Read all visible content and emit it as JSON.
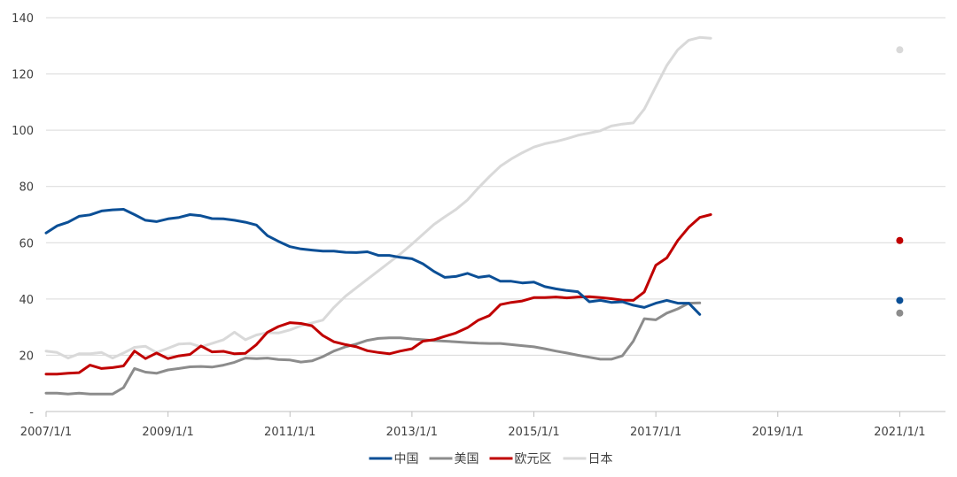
{
  "chart_data": {
    "type": "line",
    "title": "",
    "xlabel": "",
    "ylabel": "",
    "x_ticks": [
      {
        "label": "2007/1/1",
        "x": 2007.0
      },
      {
        "label": "2009/1/1",
        "x": 2009.0
      },
      {
        "label": "2011/1/1",
        "x": 2011.0
      },
      {
        "label": "2013/1/1",
        "x": 2013.0
      },
      {
        "label": "2015/1/1",
        "x": 2015.0
      },
      {
        "label": "2017/1/1",
        "x": 2017.0
      },
      {
        "label": "2019/1/1",
        "x": 2019.0
      },
      {
        "label": "2021/1/1",
        "x": 2021.0
      }
    ],
    "y_ticks": [
      {
        "label": "-",
        "value": 0
      },
      {
        "label": "20",
        "value": 20
      },
      {
        "label": "40",
        "value": 40
      },
      {
        "label": "60",
        "value": 60
      },
      {
        "label": "80",
        "value": 80
      },
      {
        "label": "100",
        "value": 100
      },
      {
        "label": "120",
        "value": 120
      },
      {
        "label": "140",
        "value": 140
      }
    ],
    "xlim": [
      2007.0,
      2021.75
    ],
    "ylim": [
      0,
      140
    ],
    "grid": true,
    "legend": "bottom",
    "series": [
      {
        "name": "中国",
        "color": "#0b4f96",
        "marker": {
          "x": 2021.0,
          "y": 39.5
        },
        "points": [
          [
            2007.0,
            63.5
          ],
          [
            2007.18,
            66.0
          ],
          [
            2007.36,
            67.3
          ],
          [
            2007.54,
            69.4
          ],
          [
            2007.72,
            69.9
          ],
          [
            2007.91,
            71.3
          ],
          [
            2008.09,
            71.7
          ],
          [
            2008.27,
            71.9
          ],
          [
            2008.45,
            70.0
          ],
          [
            2008.63,
            68.0
          ],
          [
            2008.81,
            67.5
          ],
          [
            2009.0,
            68.5
          ],
          [
            2009.18,
            69.0
          ],
          [
            2009.36,
            70.0
          ],
          [
            2009.54,
            69.6
          ],
          [
            2009.72,
            68.6
          ],
          [
            2009.91,
            68.5
          ],
          [
            2010.09,
            68.0
          ],
          [
            2010.27,
            67.3
          ],
          [
            2010.45,
            66.3
          ],
          [
            2010.63,
            62.5
          ],
          [
            2010.81,
            60.5
          ],
          [
            2011.0,
            58.6
          ],
          [
            2011.18,
            57.8
          ],
          [
            2011.36,
            57.4
          ],
          [
            2011.54,
            57.0
          ],
          [
            2011.72,
            57.0
          ],
          [
            2011.91,
            56.6
          ],
          [
            2012.09,
            56.5
          ],
          [
            2012.27,
            56.8
          ],
          [
            2012.45,
            55.5
          ],
          [
            2012.63,
            55.5
          ],
          [
            2012.81,
            54.8
          ],
          [
            2013.0,
            54.3
          ],
          [
            2013.18,
            52.5
          ],
          [
            2013.36,
            49.8
          ],
          [
            2013.54,
            47.7
          ],
          [
            2013.72,
            48.0
          ],
          [
            2013.91,
            49.1
          ],
          [
            2014.09,
            47.7
          ],
          [
            2014.27,
            48.2
          ],
          [
            2014.45,
            46.3
          ],
          [
            2014.63,
            46.3
          ],
          [
            2014.81,
            45.7
          ],
          [
            2015.0,
            46.0
          ],
          [
            2015.18,
            44.4
          ],
          [
            2015.36,
            43.6
          ],
          [
            2015.54,
            43.0
          ],
          [
            2015.72,
            42.6
          ],
          [
            2015.91,
            39.0
          ],
          [
            2016.09,
            39.5
          ],
          [
            2016.27,
            38.8
          ],
          [
            2016.45,
            39.0
          ],
          [
            2016.63,
            37.8
          ],
          [
            2016.81,
            37.0
          ],
          [
            2017.0,
            38.5
          ],
          [
            2017.18,
            39.5
          ],
          [
            2017.36,
            38.5
          ],
          [
            2017.54,
            38.5
          ],
          [
            2017.72,
            34.5
          ]
        ]
      },
      {
        "name": "美国",
        "color": "#8c8c8c",
        "marker": {
          "x": 2021.0,
          "y": 35.0
        },
        "points": [
          [
            2007.0,
            6.5
          ],
          [
            2007.18,
            6.5
          ],
          [
            2007.36,
            6.2
          ],
          [
            2007.54,
            6.5
          ],
          [
            2007.72,
            6.2
          ],
          [
            2007.91,
            6.2
          ],
          [
            2008.09,
            6.2
          ],
          [
            2008.27,
            8.5
          ],
          [
            2008.45,
            15.3
          ],
          [
            2008.63,
            14.0
          ],
          [
            2008.81,
            13.6
          ],
          [
            2009.0,
            14.8
          ],
          [
            2009.18,
            15.3
          ],
          [
            2009.36,
            15.9
          ],
          [
            2009.54,
            16.0
          ],
          [
            2009.72,
            15.8
          ],
          [
            2009.91,
            16.5
          ],
          [
            2010.09,
            17.5
          ],
          [
            2010.27,
            19.0
          ],
          [
            2010.45,
            18.8
          ],
          [
            2010.63,
            19.0
          ],
          [
            2010.81,
            18.5
          ],
          [
            2011.0,
            18.3
          ],
          [
            2011.18,
            17.6
          ],
          [
            2011.36,
            18.0
          ],
          [
            2011.54,
            19.5
          ],
          [
            2011.72,
            21.5
          ],
          [
            2011.91,
            23.0
          ],
          [
            2012.09,
            24.0
          ],
          [
            2012.27,
            25.3
          ],
          [
            2012.45,
            26.0
          ],
          [
            2012.63,
            26.2
          ],
          [
            2012.81,
            26.2
          ],
          [
            2013.0,
            25.8
          ],
          [
            2013.18,
            25.5
          ],
          [
            2013.36,
            25.2
          ],
          [
            2013.54,
            25.0
          ],
          [
            2013.72,
            24.8
          ],
          [
            2013.91,
            24.5
          ],
          [
            2014.09,
            24.3
          ],
          [
            2014.27,
            24.2
          ],
          [
            2014.45,
            24.2
          ],
          [
            2014.63,
            23.8
          ],
          [
            2014.81,
            23.4
          ],
          [
            2015.0,
            23.0
          ],
          [
            2015.18,
            22.3
          ],
          [
            2015.36,
            21.5
          ],
          [
            2015.54,
            20.8
          ],
          [
            2015.72,
            20.0
          ],
          [
            2015.91,
            19.3
          ],
          [
            2016.09,
            18.6
          ],
          [
            2016.27,
            18.6
          ],
          [
            2016.45,
            19.8
          ],
          [
            2016.63,
            25.0
          ],
          [
            2016.81,
            33.0
          ],
          [
            2017.0,
            32.6
          ],
          [
            2017.18,
            35.0
          ],
          [
            2017.36,
            36.5
          ],
          [
            2017.54,
            38.5
          ],
          [
            2017.72,
            38.6
          ]
        ]
      },
      {
        "name": "欧元区",
        "color": "#c00000",
        "marker": {
          "x": 2021.0,
          "y": 60.8
        },
        "points": [
          [
            2007.0,
            13.3
          ],
          [
            2007.18,
            13.3
          ],
          [
            2007.36,
            13.6
          ],
          [
            2007.54,
            13.8
          ],
          [
            2007.72,
            16.5
          ],
          [
            2007.91,
            15.3
          ],
          [
            2008.09,
            15.6
          ],
          [
            2008.27,
            16.2
          ],
          [
            2008.45,
            21.5
          ],
          [
            2008.63,
            18.8
          ],
          [
            2008.81,
            20.8
          ],
          [
            2009.0,
            18.8
          ],
          [
            2009.18,
            19.8
          ],
          [
            2009.36,
            20.3
          ],
          [
            2009.54,
            23.3
          ],
          [
            2009.72,
            21.2
          ],
          [
            2009.91,
            21.4
          ],
          [
            2010.09,
            20.5
          ],
          [
            2010.27,
            20.7
          ],
          [
            2010.45,
            23.8
          ],
          [
            2010.63,
            28.2
          ],
          [
            2010.81,
            30.2
          ],
          [
            2011.0,
            31.6
          ],
          [
            2011.18,
            31.3
          ],
          [
            2011.36,
            30.5
          ],
          [
            2011.54,
            27.0
          ],
          [
            2011.72,
            24.8
          ],
          [
            2011.91,
            23.8
          ],
          [
            2012.09,
            23.0
          ],
          [
            2012.27,
            21.6
          ],
          [
            2012.45,
            21.0
          ],
          [
            2012.63,
            20.5
          ],
          [
            2012.81,
            21.5
          ],
          [
            2013.0,
            22.3
          ],
          [
            2013.18,
            25.0
          ],
          [
            2013.36,
            25.5
          ],
          [
            2013.54,
            26.7
          ],
          [
            2013.72,
            27.9
          ],
          [
            2013.91,
            29.8
          ],
          [
            2014.09,
            32.5
          ],
          [
            2014.27,
            34.1
          ],
          [
            2014.45,
            38.0
          ],
          [
            2014.63,
            38.8
          ],
          [
            2014.81,
            39.3
          ],
          [
            2015.0,
            40.5
          ],
          [
            2015.18,
            40.5
          ],
          [
            2015.36,
            40.7
          ],
          [
            2015.54,
            40.4
          ],
          [
            2015.72,
            40.7
          ],
          [
            2015.91,
            40.8
          ],
          [
            2016.09,
            40.5
          ],
          [
            2016.27,
            40.1
          ],
          [
            2016.45,
            39.6
          ],
          [
            2016.63,
            39.5
          ],
          [
            2016.81,
            42.5
          ],
          [
            2017.0,
            52.0
          ],
          [
            2017.18,
            54.6
          ],
          [
            2017.36,
            60.8
          ],
          [
            2017.54,
            65.5
          ],
          [
            2017.72,
            69.0
          ],
          [
            2017.9,
            70.0
          ]
        ]
      },
      {
        "name": "日本",
        "color": "#d9d9d9",
        "marker": {
          "x": 2021.0,
          "y": 128.6
        },
        "points": [
          [
            2007.0,
            21.5
          ],
          [
            2007.18,
            21.0
          ],
          [
            2007.36,
            19.0
          ],
          [
            2007.54,
            20.5
          ],
          [
            2007.72,
            20.5
          ],
          [
            2007.91,
            21.0
          ],
          [
            2008.09,
            19.0
          ],
          [
            2008.27,
            20.8
          ],
          [
            2008.45,
            22.8
          ],
          [
            2008.63,
            23.2
          ],
          [
            2008.81,
            21.0
          ],
          [
            2009.0,
            22.5
          ],
          [
            2009.18,
            24.0
          ],
          [
            2009.36,
            24.2
          ],
          [
            2009.54,
            23.0
          ],
          [
            2009.72,
            24.2
          ],
          [
            2009.91,
            25.5
          ],
          [
            2010.09,
            28.2
          ],
          [
            2010.27,
            25.5
          ],
          [
            2010.45,
            27.2
          ],
          [
            2010.63,
            28.0
          ],
          [
            2010.81,
            27.9
          ],
          [
            2011.0,
            29.0
          ],
          [
            2011.18,
            30.5
          ],
          [
            2011.36,
            31.5
          ],
          [
            2011.54,
            32.5
          ],
          [
            2011.72,
            37.0
          ],
          [
            2011.91,
            41.0
          ],
          [
            2012.09,
            44.0
          ],
          [
            2012.27,
            47.0
          ],
          [
            2012.45,
            50.0
          ],
          [
            2012.63,
            53.0
          ],
          [
            2012.81,
            56.0
          ],
          [
            2013.0,
            59.5
          ],
          [
            2013.18,
            63.0
          ],
          [
            2013.36,
            66.5
          ],
          [
            2013.54,
            69.2
          ],
          [
            2013.72,
            71.8
          ],
          [
            2013.91,
            75.2
          ],
          [
            2014.09,
            79.5
          ],
          [
            2014.27,
            83.5
          ],
          [
            2014.45,
            87.2
          ],
          [
            2014.63,
            89.8
          ],
          [
            2014.81,
            92.0
          ],
          [
            2015.0,
            94.0
          ],
          [
            2015.18,
            95.2
          ],
          [
            2015.36,
            96.0
          ],
          [
            2015.54,
            97.0
          ],
          [
            2015.72,
            98.2
          ],
          [
            2015.91,
            99.0
          ],
          [
            2016.09,
            99.8
          ],
          [
            2016.27,
            101.5
          ],
          [
            2016.45,
            102.2
          ],
          [
            2016.63,
            102.6
          ],
          [
            2016.81,
            107.5
          ],
          [
            2017.0,
            115.5
          ],
          [
            2017.18,
            123.0
          ],
          [
            2017.36,
            128.6
          ],
          [
            2017.54,
            132.0
          ],
          [
            2017.72,
            133.0
          ],
          [
            2017.9,
            132.7
          ]
        ]
      }
    ]
  }
}
